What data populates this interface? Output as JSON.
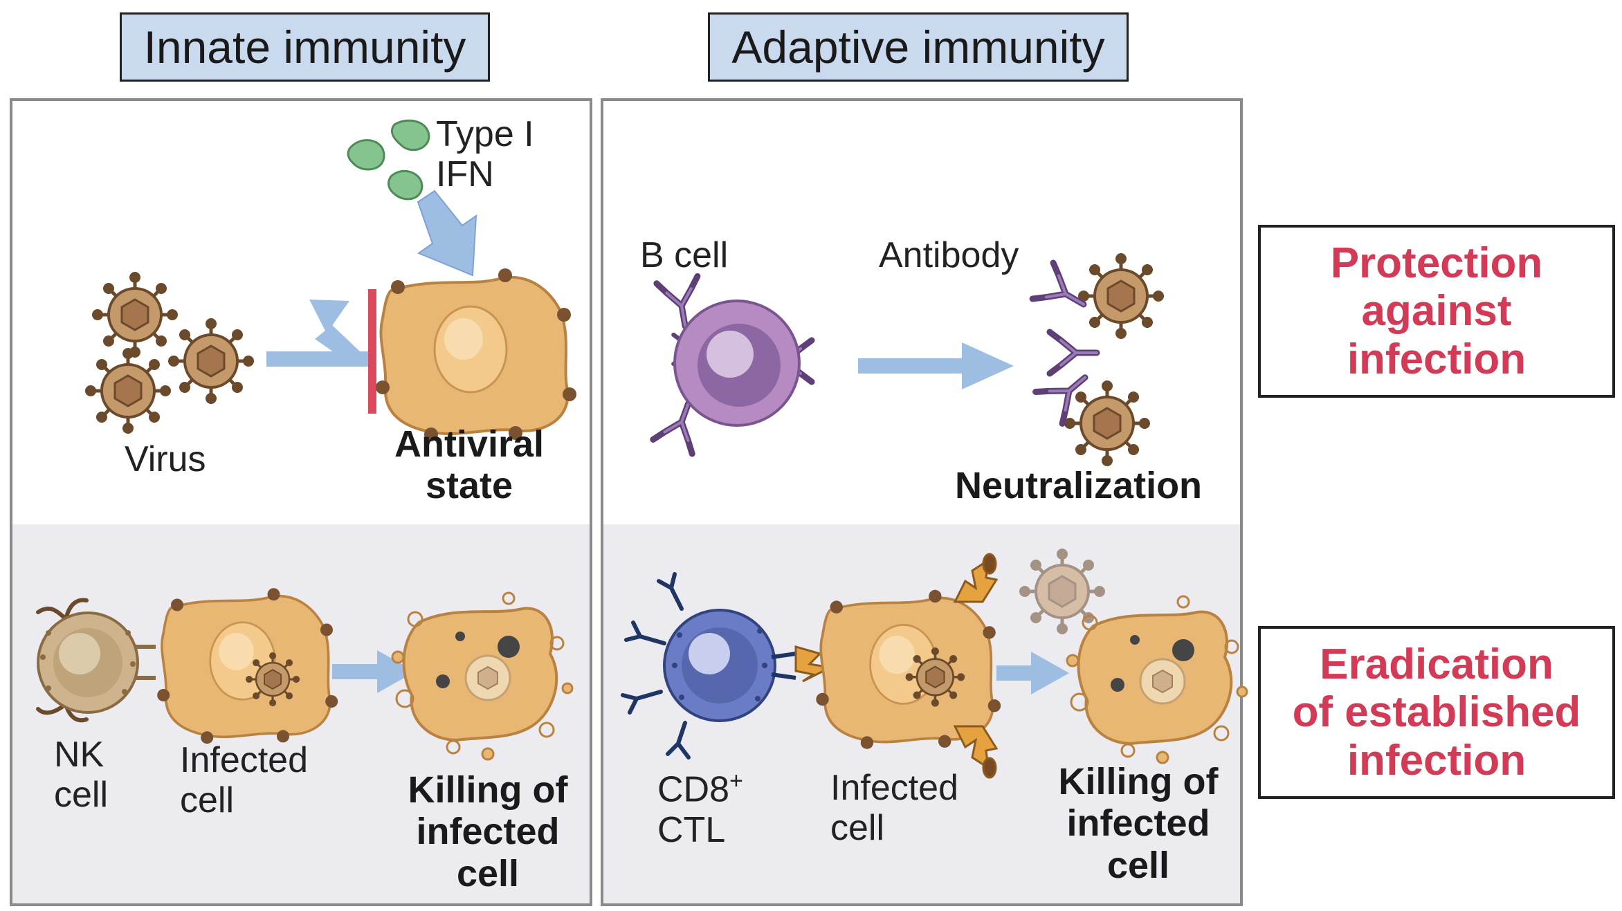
{
  "headers": {
    "innate": "Innate immunity",
    "adaptive": "Adaptive immunity"
  },
  "innate_top": {
    "virus": "Virus",
    "ifn_line1": "Type I",
    "ifn_line2": "IFN",
    "result_line1": "Antiviral",
    "result_line2": "state"
  },
  "innate_bottom": {
    "nk_line1": "NK",
    "nk_line2": "cell",
    "infected_line1": "Infected",
    "infected_line2": "cell",
    "result_line1": "Killing of",
    "result_line2": "infected",
    "result_line3": "cell"
  },
  "adaptive_top": {
    "bcell": "B cell",
    "antibody": "Antibody",
    "result": "Neutralization"
  },
  "adaptive_bottom": {
    "ctl_line1": "CD8",
    "ctl_sup": "+",
    "ctl_line2": "CTL",
    "infected_line1": "Infected",
    "infected_line2": "cell",
    "result_line1": "Killing of",
    "result_line2": "infected",
    "result_line3": "cell"
  },
  "outcomes": {
    "protection": [
      "Protection",
      "against",
      "infection"
    ],
    "eradication": [
      "Eradication",
      "of established",
      "infection"
    ]
  },
  "colors": {
    "arrow": "#9dbde3",
    "block": "#d94a5c",
    "cell": "#e9b774",
    "virus": "#a07a52",
    "ifn": "#86c48f",
    "bcell": "#b58bc2",
    "ctl": "#6b7cc6",
    "nk": "#cdb48d",
    "outcome_text": "#d23a55"
  }
}
